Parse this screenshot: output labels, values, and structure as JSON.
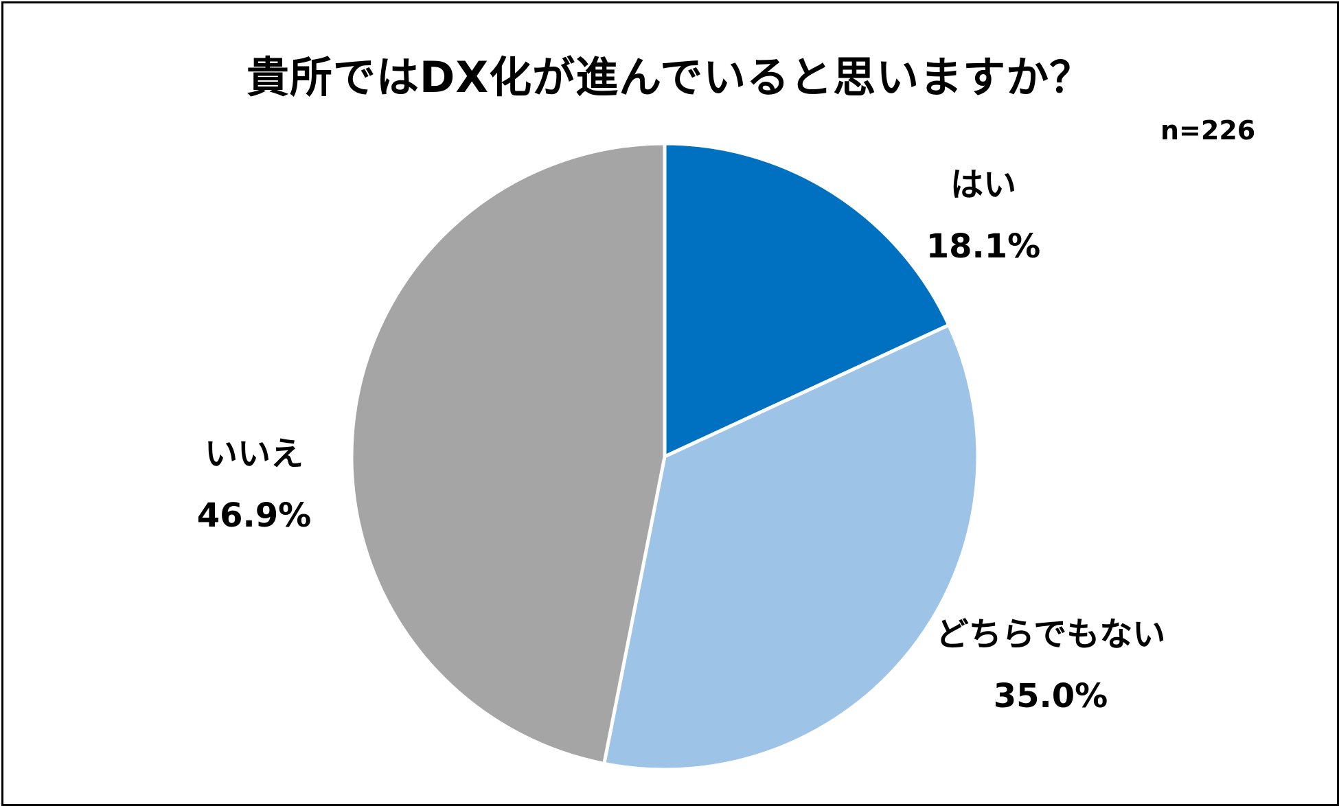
{
  "chart_data": {
    "type": "pie",
    "title": "貴所ではDX化が進んでいると思いますか？",
    "sample_size_label": "n=226",
    "slices": [
      {
        "label": "はい",
        "value": 18.1,
        "value_label": "18.1%",
        "color": "#0070C0"
      },
      {
        "label": "どちらでもない",
        "value": 35.0,
        "value_label": "35.0%",
        "color": "#9DC3E6"
      },
      {
        "label": "いいえ",
        "value": 46.9,
        "value_label": "46.9%",
        "color": "#A5A5A5"
      }
    ],
    "start_angle": "12 o'clock",
    "direction": "clockwise",
    "slice_border_color": "#FFFFFF",
    "legend": "none (labels beside slices)"
  }
}
